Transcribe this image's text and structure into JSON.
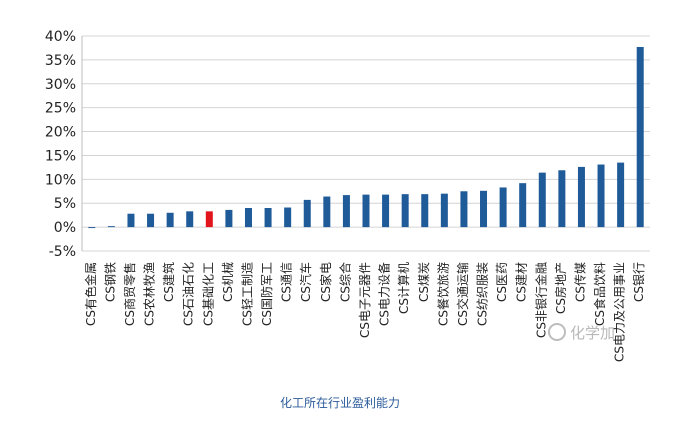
{
  "chart_data": {
    "type": "bar",
    "categories": [
      "CS有色金属",
      "CS钢铁",
      "CS商贸零售",
      "CS农林牧渔",
      "CS建筑",
      "CS石油石化",
      "CS基础化工",
      "CS机械",
      "CS轻工制造",
      "CS国防军工",
      "CS通信",
      "CS汽车",
      "CS家电",
      "CS综合",
      "CS电子元器件",
      "CS电力设备",
      "CS计算机",
      "CS煤炭",
      "CS餐饮旅游",
      "CS交通运输",
      "CS纺织服装",
      "CS医药",
      "CS建材",
      "CS非银行金融",
      "CS房地产",
      "CS传媒",
      "CS食品饮料",
      "CS电力及公用事业",
      "CS银行"
    ],
    "values": [
      -0.2,
      0.2,
      2.8,
      2.8,
      3.0,
      3.3,
      3.3,
      3.6,
      4.0,
      4.0,
      4.1,
      5.7,
      6.4,
      6.7,
      6.8,
      6.8,
      6.9,
      6.9,
      7.0,
      7.5,
      7.6,
      8.3,
      9.2,
      11.4,
      11.9,
      12.6,
      13.1,
      13.5,
      37.7
    ],
    "highlight_category": "CS基础化工",
    "ytick_labels": [
      "40%",
      "35%",
      "30%",
      "25%",
      "20%",
      "15%",
      "10%",
      "5%",
      "0%",
      "-5%"
    ],
    "ylim": [
      -5,
      40
    ],
    "bar_color": "#1f5a99",
    "highlight_color": "#e3151c"
  },
  "watermark": "化学加",
  "caption": "化工所在行业盈利能力"
}
